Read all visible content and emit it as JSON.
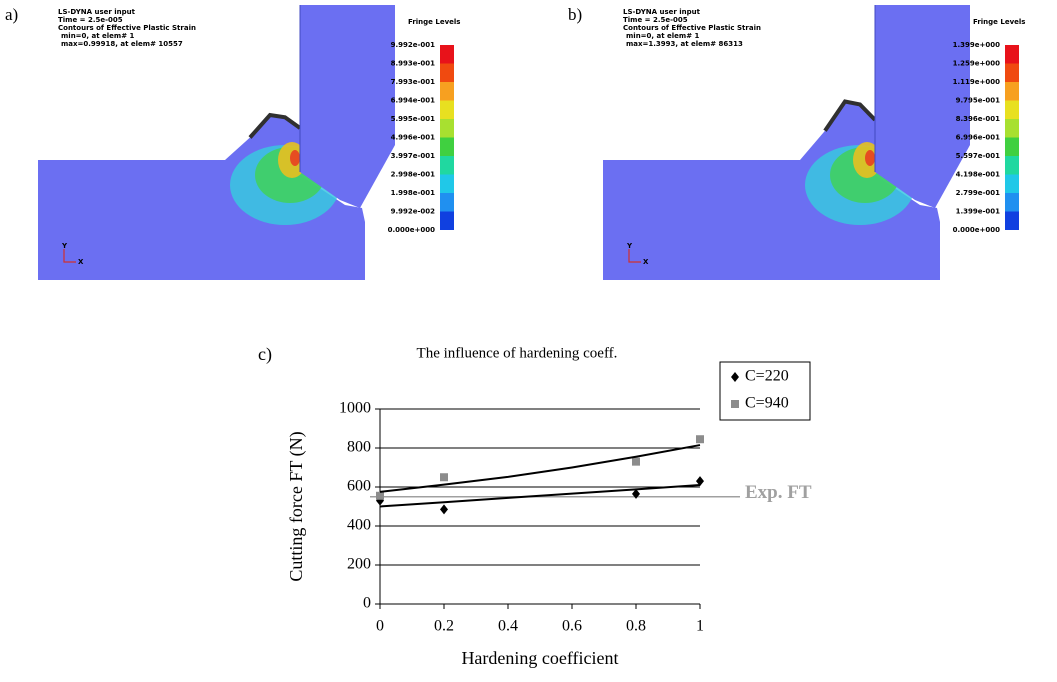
{
  "panels": {
    "a": {
      "label": "a)",
      "header": [
        "LS-DYNA user input",
        "Time =    2.5e-005",
        "Contours of Effective Plastic Strain",
        "min=0, at elem# 1",
        "max=0.99918, at elem# 10557"
      ],
      "fringe_title": "Fringe Levels",
      "fringe_levels": [
        "9.992e-001",
        "8.993e-001",
        "7.993e-001",
        "6.994e-001",
        "5.995e-001",
        "4.996e-001",
        "3.997e-001",
        "2.998e-001",
        "1.998e-001",
        "9.992e-002",
        "0.000e+000"
      ],
      "axis_y": "Y",
      "axis_x": "X"
    },
    "b": {
      "label": "b)",
      "header": [
        "LS-DYNA user input",
        "Time =    2.5e-005",
        "Contours of Effective Plastic Strain",
        "min=0, at elem# 1",
        "max=1.3993, at elem# 86313"
      ],
      "fringe_title": "Fringe Levels",
      "fringe_levels": [
        "1.399e+000",
        "1.259e+000",
        "1.119e+000",
        "9.795e-001",
        "8.396e-001",
        "6.996e-001",
        "5.597e-001",
        "4.198e-001",
        "2.799e-001",
        "1.399e-001",
        "0.000e+000"
      ],
      "axis_y": "Y",
      "axis_x": "X"
    }
  },
  "chart_data": {
    "type": "scatter",
    "panel_label": "c)",
    "title": "The influence of hardening coeff.",
    "x_label": "Hardening coefficient",
    "y_label": "Cutting force FT (N)",
    "x": [
      0,
      0.2,
      0.8,
      1
    ],
    "series": [
      {
        "name": "C=220",
        "color": "#000000",
        "marker": "diamond",
        "values": [
          530,
          485,
          565,
          630
        ],
        "trend": [
          500,
          522,
          544,
          566,
          588,
          610
        ]
      },
      {
        "name": "C=940",
        "color": "#8c8c8c",
        "marker": "square",
        "values": [
          555,
          650,
          730,
          845
        ],
        "trend": [
          575,
          612,
          652,
          700,
          755,
          815
        ]
      }
    ],
    "trend_x": [
      0,
      0.2,
      0.4,
      0.6,
      0.8,
      1
    ],
    "trend_color": "#000000",
    "reference": {
      "value": 550,
      "label": "Exp. FT",
      "color": "#a0a0a0"
    },
    "xlim": [
      0,
      1
    ],
    "xticks": [
      0,
      0.2,
      0.4,
      0.6,
      0.8,
      1
    ],
    "ylim": [
      0,
      1000
    ],
    "yticks": [
      0,
      200,
      400,
      600,
      800,
      1000
    ],
    "grid": true,
    "legend": "top-right"
  }
}
